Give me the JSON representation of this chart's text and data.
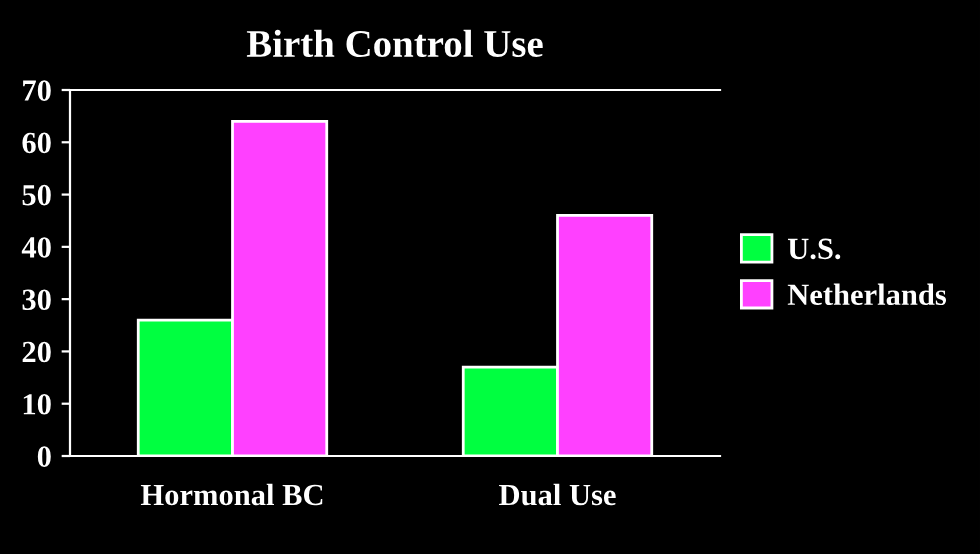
{
  "chart_data": {
    "type": "bar",
    "title": "Birth Control Use",
    "categories": [
      "Hormonal BC",
      "Dual Use"
    ],
    "series": [
      {
        "name": "U.S.",
        "color": "#00ff40",
        "values": [
          26,
          17
        ]
      },
      {
        "name": "Netherlands",
        "color": "#ff40ff",
        "values": [
          64,
          46
        ]
      }
    ],
    "ylim": [
      0,
      70
    ],
    "yticks": [
      0,
      10,
      20,
      30,
      40,
      50,
      60,
      70
    ],
    "grid": false,
    "legend": "right"
  }
}
